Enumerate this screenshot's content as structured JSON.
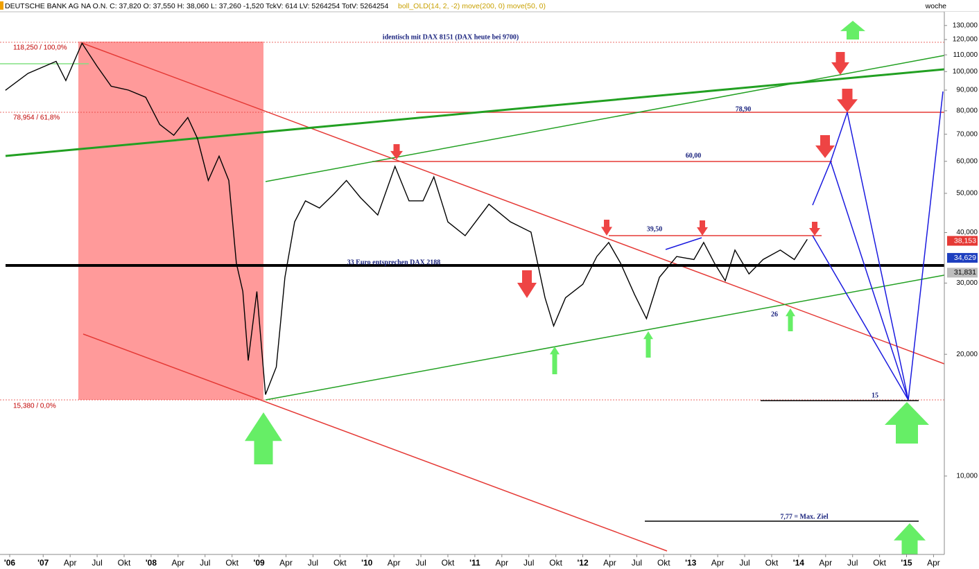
{
  "chart_data": {
    "type": "line",
    "title": "DEUTSCHE BANK AG NA O.N. C: 37,820 O: 37,550 H: 38,060 L: 37,260 -1,520 TckV: 614 LV: 5264254 TotV: 5264254",
    "indicators": "boll_OLD(14, 2, -2) move(200, 0) move(50, 0)",
    "period": "woche",
    "log_scale": true,
    "series": [
      {
        "name": "DEUTSCHE BANK AG NA O.N.",
        "color": "#000000",
        "x": [
          2006.65,
          2006.86,
          2007.12,
          2007.21,
          2007.36,
          2007.5,
          2007.63,
          2007.79,
          2007.95,
          2008.08,
          2008.21,
          2008.34,
          2008.43,
          2008.53,
          2008.63,
          2008.72,
          2008.79,
          2008.85,
          2008.9,
          2008.98,
          2009.06,
          2009.16,
          2009.24,
          2009.33,
          2009.43,
          2009.56,
          2009.69,
          2009.81,
          2009.94,
          2010.1,
          2010.26,
          2010.39,
          2010.52,
          2010.62,
          2010.75,
          2010.91,
          2011.13,
          2011.33,
          2011.52,
          2011.65,
          2011.73,
          2011.84,
          2012.0,
          2012.13,
          2012.24,
          2012.35,
          2012.48,
          2012.59,
          2012.71,
          2012.87,
          2013.03,
          2013.12,
          2013.22,
          2013.32,
          2013.41,
          2013.54,
          2013.67,
          2013.83,
          2013.96,
          2014.08
        ],
        "values": [
          89.9,
          99,
          106,
          95,
          117.5,
          103,
          92,
          90,
          86.4,
          74,
          69.6,
          77,
          68.3,
          53.8,
          61.8,
          53.8,
          33.6,
          28.6,
          19.3,
          28.6,
          15.9,
          18.6,
          31,
          42.5,
          47.9,
          46,
          49.7,
          53.8,
          48.8,
          44.2,
          58.3,
          47.9,
          47.9,
          54.9,
          42.5,
          39.3,
          47,
          42.5,
          40.1,
          27.6,
          23.5,
          27.6,
          29.8,
          34.9,
          37.8,
          33.6,
          28.1,
          24.5,
          31,
          34.9,
          34.3,
          37.8,
          33.6,
          30.4,
          36.2,
          31.6,
          34.3,
          36.2,
          34.3,
          38.5
        ]
      }
    ],
    "xlim": [
      2006.6,
      2015.35
    ],
    "xticks": [
      {
        "value": 2006.69,
        "label": "'06"
      },
      {
        "value": 2007,
        "label": "'07"
      },
      {
        "value": 2007.25,
        "label": "Apr"
      },
      {
        "value": 2007.5,
        "label": "Jul"
      },
      {
        "value": 2007.75,
        "label": "Okt"
      },
      {
        "value": 2008,
        "label": "'08"
      },
      {
        "value": 2008.25,
        "label": "Apr"
      },
      {
        "value": 2008.5,
        "label": "Jul"
      },
      {
        "value": 2008.75,
        "label": "Okt"
      },
      {
        "value": 2009,
        "label": "'09"
      },
      {
        "value": 2009.25,
        "label": "Apr"
      },
      {
        "value": 2009.5,
        "label": "Jul"
      },
      {
        "value": 2009.75,
        "label": "Okt"
      },
      {
        "value": 2010,
        "label": "'10"
      },
      {
        "value": 2010.25,
        "label": "Apr"
      },
      {
        "value": 2010.5,
        "label": "Jul"
      },
      {
        "value": 2010.75,
        "label": "Okt"
      },
      {
        "value": 2011,
        "label": "'11"
      },
      {
        "value": 2011.25,
        "label": "Apr"
      },
      {
        "value": 2011.5,
        "label": "Jul"
      },
      {
        "value": 2011.75,
        "label": "Okt"
      },
      {
        "value": 2012,
        "label": "'12"
      },
      {
        "value": 2012.25,
        "label": "Apr"
      },
      {
        "value": 2012.5,
        "label": "Jul"
      },
      {
        "value": 2012.75,
        "label": "Okt"
      },
      {
        "value": 2013,
        "label": "'13"
      },
      {
        "value": 2013.25,
        "label": "Apr"
      },
      {
        "value": 2013.5,
        "label": "Jul"
      },
      {
        "value": 2013.75,
        "label": "Okt"
      },
      {
        "value": 2014,
        "label": "'14"
      },
      {
        "value": 2014.25,
        "label": "Apr"
      },
      {
        "value": 2014.5,
        "label": "Jul"
      },
      {
        "value": 2014.75,
        "label": "Okt"
      },
      {
        "value": 2015,
        "label": "'15"
      },
      {
        "value": 2015.25,
        "label": "Apr"
      }
    ],
    "ylim": [
      6.4,
      140
    ],
    "yticks": [
      {
        "value": 130,
        "label": "130,000"
      },
      {
        "value": 120,
        "label": "120,000"
      },
      {
        "value": 110,
        "label": "110,000"
      },
      {
        "value": 100,
        "label": "100,000"
      },
      {
        "value": 90,
        "label": "90,000"
      },
      {
        "value": 80,
        "label": "80,000"
      },
      {
        "value": 70,
        "label": "70,000"
      },
      {
        "value": 60,
        "label": "60,000"
      },
      {
        "value": 50,
        "label": "50,000"
      },
      {
        "value": 40,
        "label": "40,000"
      },
      {
        "value": 30,
        "label": "30,000"
      },
      {
        "value": 20,
        "label": "20,000"
      },
      {
        "value": 10,
        "label": "10,000"
      }
    ],
    "price_tags": [
      {
        "value": 38.153,
        "label": "38,153",
        "color": "#e53935"
      },
      {
        "value": 34.629,
        "label": "34,629",
        "color": "#1e3fbf"
      },
      {
        "value": 31.831,
        "label": "31,831",
        "color": "#bdbdbd"
      }
    ],
    "annotations": [
      "identisch mit DAX 8151  (DAX heute bei 9700)",
      "118,250 / 100,0%",
      "78,954 / 61,8%",
      "15,380 / 0,0%",
      "78,90",
      "60,00",
      "39,50",
      "33 Euro entsprechen DAX 2188",
      "26",
      "15",
      "7,77 = Max. Ziel"
    ]
  }
}
